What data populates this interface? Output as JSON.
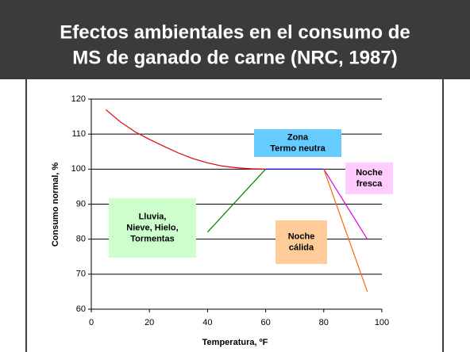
{
  "chart_data": {
    "type": "line",
    "title": [
      "Efectos ambientales en el consumo de",
      "MS de ganado de carne (NRC, 1987)"
    ],
    "x_label": "Temperatura, ºF",
    "y_label": "Consumo normal, %",
    "xlim": [
      0,
      100
    ],
    "xticks": [
      0,
      20,
      40,
      60,
      80,
      100
    ],
    "ylim": [
      60,
      120
    ],
    "yticks": [
      60,
      70,
      80,
      90,
      100,
      110,
      120
    ],
    "grid": true,
    "series": [
      {
        "color": "#e00000",
        "x": [
          5,
          10,
          15,
          20,
          25,
          30,
          35,
          40,
          45,
          50,
          55,
          60
        ],
        "values": [
          117,
          113.5,
          110.7,
          108.5,
          106.5,
          104.6,
          103,
          101.8,
          100.9,
          100.4,
          100.1,
          100
        ]
      },
      {
        "color": "#0000ff",
        "x": [
          60,
          80
        ],
        "values": [
          100,
          100
        ]
      },
      {
        "color": "#008000",
        "x": [
          40,
          60
        ],
        "values": [
          82,
          100
        ]
      },
      {
        "color": "#e000e0",
        "x": [
          80,
          95
        ],
        "values": [
          100,
          80
        ]
      },
      {
        "color": "#ff6600",
        "x": [
          80,
          95
        ],
        "values": [
          100,
          65
        ]
      }
    ],
    "annotations": [
      {
        "lines": [
          "Zona",
          "Termo neutra"
        ],
        "color": "#66ccff"
      },
      {
        "lines": [
          "Noche",
          "fresca"
        ],
        "color": "#ffccff"
      },
      {
        "lines": [
          "Lluvia,",
          "Nieve, Hielo,",
          "Tormentas"
        ],
        "color": "#ccffcc"
      },
      {
        "lines": [
          "Noche",
          "cálida"
        ],
        "color": "#ffcc99"
      }
    ]
  }
}
